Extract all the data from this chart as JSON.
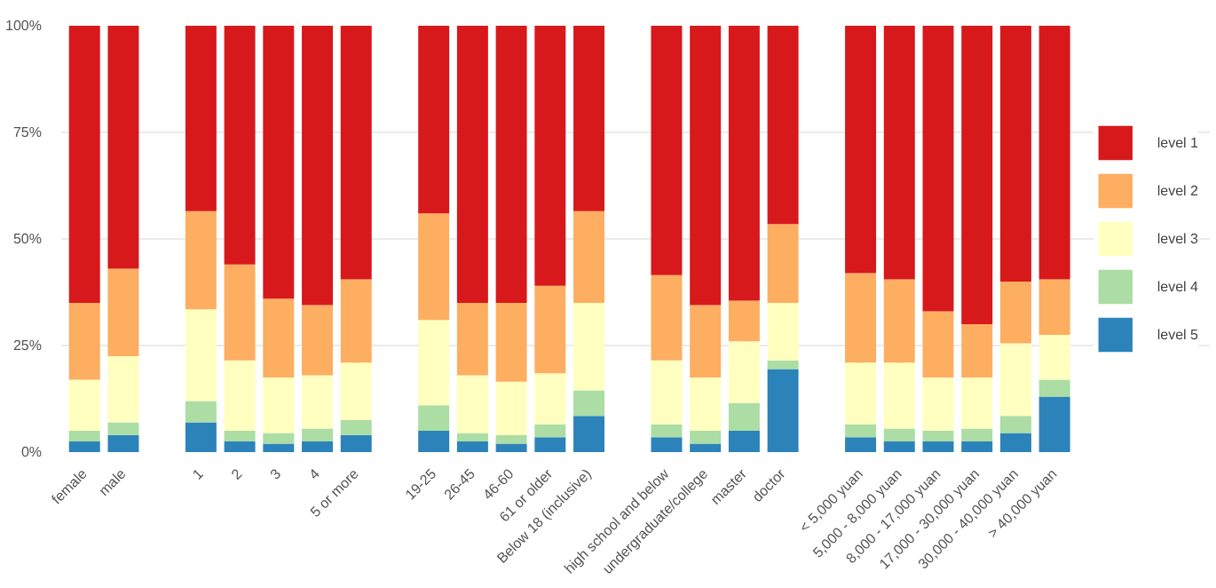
{
  "chart_data": [
    {
      "type": "bar",
      "stacked": true,
      "categories": [
        "female",
        "male"
      ],
      "ylim": [
        0,
        100
      ],
      "yticks": [
        {
          "value": 0,
          "label": "0%"
        },
        {
          "value": 25,
          "label": "25%"
        },
        {
          "value": 50,
          "label": "50%"
        },
        {
          "value": 75,
          "label": "75%"
        },
        {
          "value": 100,
          "label": "100%"
        }
      ],
      "grid": true,
      "series": [
        {
          "color": "#2b83ba",
          "values": [
            2.5,
            4
          ]
        },
        {
          "color": "#abdda4",
          "values": [
            2.5,
            3
          ]
        },
        {
          "color": "#ffffbf",
          "values": [
            12,
            15.5
          ]
        },
        {
          "color": "#fdae61",
          "values": [
            18,
            20.5
          ]
        },
        {
          "color": "#d7191c",
          "values": [
            65,
            57
          ]
        }
      ]
    },
    {
      "type": "bar",
      "stacked": true,
      "categories": [
        "1",
        "2",
        "3",
        "4",
        "5 or more"
      ],
      "ylim": [
        0,
        100
      ],
      "grid": true,
      "tick_labels": "x",
      "series": [
        {
          "color": "#2b83ba",
          "values": [
            7,
            2.5,
            2,
            2.5,
            4
          ]
        },
        {
          "color": "#abdda4",
          "values": [
            5,
            2.5,
            2.5,
            3,
            3.5
          ]
        },
        {
          "color": "#ffffbf",
          "values": [
            21.5,
            16.5,
            13,
            12.5,
            13.5
          ]
        },
        {
          "color": "#fdae61",
          "values": [
            23,
            22.5,
            18.5,
            16.5,
            19.5
          ]
        },
        {
          "color": "#d7191c",
          "values": [
            43.5,
            56,
            64,
            65.5,
            59.5
          ]
        }
      ]
    },
    {
      "type": "bar",
      "stacked": true,
      "categories": [
        "19-25",
        "26-45",
        "46-60",
        "61 or older",
        "Below 18 (inclusive)"
      ],
      "ylim": [
        0,
        100
      ],
      "grid": true,
      "tick_labels": "x",
      "series": [
        {
          "color": "#2b83ba",
          "values": [
            5,
            2.5,
            2,
            3.5,
            8.5
          ]
        },
        {
          "color": "#abdda4",
          "values": [
            6,
            2,
            2,
            3,
            6
          ]
        },
        {
          "color": "#ffffbf",
          "values": [
            20,
            13.5,
            12.5,
            12,
            20.5
          ]
        },
        {
          "color": "#fdae61",
          "values": [
            25,
            17,
            18.5,
            20.5,
            21.5
          ]
        },
        {
          "color": "#d7191c",
          "values": [
            44,
            65,
            65,
            61,
            43.5
          ]
        }
      ]
    },
    {
      "type": "bar",
      "stacked": true,
      "categories": [
        "high school and below",
        "undergraduate/college",
        "master",
        "doctor"
      ],
      "ylim": [
        0,
        100
      ],
      "grid": true,
      "tick_labels": "x",
      "series": [
        {
          "color": "#2b83ba",
          "values": [
            3.5,
            2,
            5,
            19.5
          ]
        },
        {
          "color": "#abdda4",
          "values": [
            3,
            3,
            6.5,
            2
          ]
        },
        {
          "color": "#ffffbf",
          "values": [
            15,
            12.5,
            14.5,
            13.5
          ]
        },
        {
          "color": "#fdae61",
          "values": [
            20,
            17,
            9.5,
            18.5
          ]
        },
        {
          "color": "#d7191c",
          "values": [
            58.5,
            65.5,
            64.5,
            46.5
          ]
        }
      ]
    },
    {
      "type": "bar",
      "stacked": true,
      "categories": [
        "< 5,000 yuan",
        "5,000 - 8,000 yuan",
        "8,000 - 17,000 yuan",
        "17,000 - 30,000 yuan",
        "30,000 - 40,000 yuan",
        "> 40,000 yuan"
      ],
      "ylim": [
        0,
        100
      ],
      "grid": true,
      "legend": "right",
      "tick_labels": "x",
      "series": [
        {
          "name": "level 5",
          "color": "#2b83ba",
          "values": [
            3.5,
            2.5,
            2.5,
            2.5,
            4.5,
            13
          ]
        },
        {
          "name": "level 4",
          "color": "#abdda4",
          "values": [
            3,
            3,
            2.5,
            3,
            4,
            4
          ]
        },
        {
          "name": "level 3",
          "color": "#ffffbf",
          "values": [
            14.5,
            15.5,
            12.5,
            12,
            17,
            10.5
          ]
        },
        {
          "name": "level 2",
          "color": "#fdae61",
          "values": [
            21,
            19.5,
            15.5,
            12.5,
            14.5,
            13
          ]
        },
        {
          "name": "level 1",
          "color": "#d7191c",
          "values": [
            58,
            59.5,
            67,
            70,
            60,
            59.5
          ]
        }
      ]
    }
  ]
}
